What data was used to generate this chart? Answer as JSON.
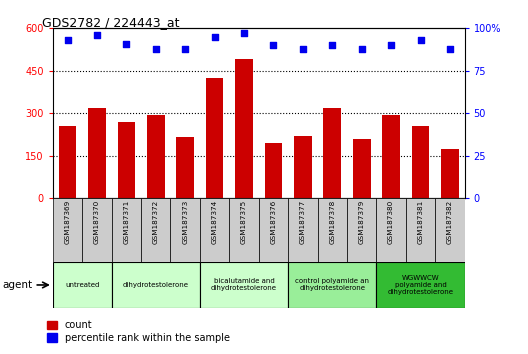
{
  "title": "GDS2782 / 224443_at",
  "samples": [
    "GSM187369",
    "GSM187370",
    "GSM187371",
    "GSM187372",
    "GSM187373",
    "GSM187374",
    "GSM187375",
    "GSM187376",
    "GSM187377",
    "GSM187378",
    "GSM187379",
    "GSM187380",
    "GSM187381",
    "GSM187382"
  ],
  "counts": [
    255,
    320,
    270,
    295,
    215,
    425,
    490,
    195,
    220,
    320,
    210,
    295,
    255,
    175
  ],
  "percentiles": [
    93,
    96,
    91,
    88,
    88,
    95,
    97,
    90,
    88,
    90,
    88,
    90,
    93,
    88
  ],
  "ylim_left": [
    0,
    600
  ],
  "ylim_right": [
    0,
    100
  ],
  "yticks_left": [
    0,
    150,
    300,
    450,
    600
  ],
  "yticks_right": [
    0,
    25,
    50,
    75,
    100
  ],
  "bar_color": "#cc0000",
  "dot_color": "#0000ee",
  "group_spans": [
    [
      0,
      1,
      "untreated",
      "#ccffcc"
    ],
    [
      2,
      4,
      "dihydrotestolerone",
      "#ccffcc"
    ],
    [
      5,
      7,
      "bicalutamide and\ndihydrotestolerone",
      "#ccffcc"
    ],
    [
      8,
      10,
      "control polyamide an\ndihydrotestolerone",
      "#99ee99"
    ],
    [
      11,
      13,
      "WGWWCW\npolyamide and\ndihydrotestolerone",
      "#33bb33"
    ]
  ],
  "agent_label": "agent",
  "legend_count_label": "count",
  "legend_pct_label": "percentile rank within the sample",
  "sample_box_color": "#cccccc",
  "sample_box_edge": "#000000"
}
